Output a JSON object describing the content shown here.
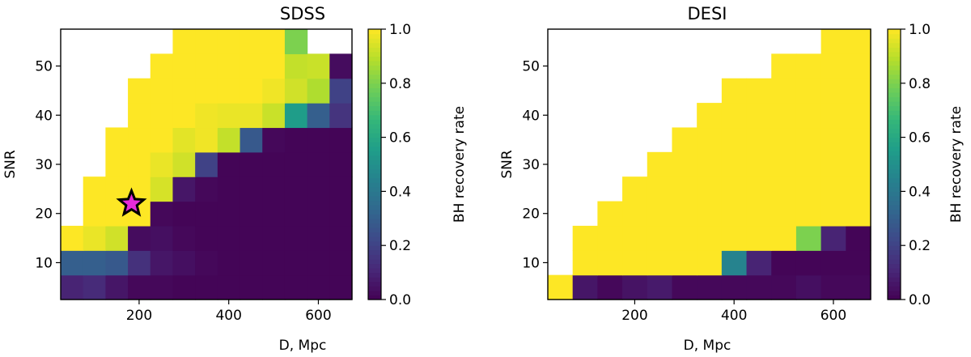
{
  "chart_data": [
    {
      "type": "heatmap",
      "title": "SDSS",
      "xlabel": "D, Mpc",
      "ylabel": "SNR",
      "xlim": [
        25,
        675
      ],
      "ylim": [
        2.5,
        57.5
      ],
      "xticks": [
        200,
        400,
        600
      ],
      "yticks": [
        10,
        20,
        30,
        40,
        50
      ],
      "x_bins": [
        50,
        100,
        150,
        200,
        250,
        300,
        350,
        400,
        450,
        500,
        550,
        600,
        650
      ],
      "y_bins": [
        5,
        10,
        15,
        20,
        25,
        30,
        35,
        40,
        45,
        50,
        55
      ],
      "values": [
        [
          0.1,
          0.12,
          0.06,
          0.02,
          0.02,
          0.01,
          0.01,
          0.01,
          0.01,
          0.01,
          0.01,
          0.01,
          0.01
        ],
        [
          0.3,
          0.3,
          0.28,
          0.14,
          0.06,
          0.04,
          0.02,
          0.01,
          0.01,
          0.01,
          0.01,
          0.01,
          0.01
        ],
        [
          1.0,
          0.97,
          0.93,
          0.03,
          0.04,
          0.02,
          0.01,
          0.01,
          0.01,
          0.01,
          0.01,
          0.01,
          0.01
        ],
        [
          null,
          1.0,
          1.0,
          1.0,
          0.02,
          0.01,
          0.01,
          0.01,
          0.01,
          0.01,
          0.01,
          0.01,
          0.01
        ],
        [
          null,
          1.0,
          1.0,
          1.0,
          0.94,
          0.06,
          0.02,
          0.01,
          0.01,
          0.01,
          0.01,
          0.01,
          0.01
        ],
        [
          null,
          null,
          1.0,
          1.0,
          0.97,
          0.93,
          0.2,
          0.01,
          0.01,
          0.01,
          0.01,
          0.01,
          0.01
        ],
        [
          null,
          null,
          1.0,
          1.0,
          1.0,
          0.96,
          0.98,
          0.91,
          0.28,
          0.02,
          0.01,
          0.01,
          0.01
        ],
        [
          null,
          null,
          null,
          1.0,
          1.0,
          1.0,
          0.98,
          0.97,
          0.97,
          0.92,
          0.55,
          0.3,
          0.15
        ],
        [
          null,
          null,
          null,
          1.0,
          1.0,
          1.0,
          1.0,
          1.0,
          1.0,
          0.98,
          0.93,
          0.88,
          0.2
        ],
        [
          null,
          null,
          null,
          null,
          1.0,
          1.0,
          1.0,
          1.0,
          1.0,
          1.0,
          0.91,
          0.92,
          0.03
        ],
        [
          null,
          null,
          null,
          null,
          null,
          1.0,
          1.0,
          1.0,
          1.0,
          1.0,
          0.8,
          null,
          null
        ]
      ],
      "marker": {
        "shape": "star",
        "x": 183,
        "y": 22,
        "fill": "#e62bd8",
        "edge": "#000000"
      },
      "colorbar": {
        "label": "BH recovery rate",
        "range": [
          0,
          1
        ],
        "ticks": [
          "0.0",
          "0.2",
          "0.4",
          "0.6",
          "0.8",
          "1.0"
        ]
      }
    },
    {
      "type": "heatmap",
      "title": "DESI",
      "xlabel": "D, Mpc",
      "ylabel": "SNR",
      "xlim": [
        25,
        675
      ],
      "ylim": [
        2.5,
        57.5
      ],
      "xticks": [
        200,
        400,
        600
      ],
      "yticks": [
        10,
        20,
        30,
        40,
        50
      ],
      "x_bins": [
        50,
        100,
        150,
        200,
        250,
        300,
        350,
        400,
        450,
        500,
        550,
        600,
        650
      ],
      "y_bins": [
        5,
        10,
        15,
        20,
        25,
        30,
        35,
        40,
        45,
        50,
        55
      ],
      "values": [
        [
          1.0,
          0.06,
          0.02,
          0.05,
          0.07,
          0.02,
          0.02,
          0.02,
          0.02,
          0.02,
          0.04,
          0.02,
          0.02
        ],
        [
          null,
          1.0,
          1.0,
          1.0,
          1.0,
          1.0,
          1.0,
          0.45,
          0.1,
          0.01,
          0.01,
          0.01,
          0.01
        ],
        [
          null,
          1.0,
          1.0,
          1.0,
          1.0,
          1.0,
          1.0,
          1.0,
          1.0,
          1.0,
          0.8,
          0.1,
          0.01
        ],
        [
          null,
          null,
          1.0,
          1.0,
          1.0,
          1.0,
          1.0,
          1.0,
          1.0,
          1.0,
          1.0,
          1.0,
          1.0
        ],
        [
          null,
          null,
          null,
          1.0,
          1.0,
          1.0,
          1.0,
          1.0,
          1.0,
          1.0,
          1.0,
          1.0,
          1.0
        ],
        [
          null,
          null,
          null,
          null,
          1.0,
          1.0,
          1.0,
          1.0,
          1.0,
          1.0,
          1.0,
          1.0,
          1.0
        ],
        [
          null,
          null,
          null,
          null,
          null,
          1.0,
          1.0,
          1.0,
          1.0,
          1.0,
          1.0,
          1.0,
          1.0
        ],
        [
          null,
          null,
          null,
          null,
          null,
          null,
          1.0,
          1.0,
          1.0,
          1.0,
          1.0,
          1.0,
          1.0
        ],
        [
          null,
          null,
          null,
          null,
          null,
          null,
          null,
          1.0,
          1.0,
          1.0,
          1.0,
          1.0,
          1.0
        ],
        [
          null,
          null,
          null,
          null,
          null,
          null,
          null,
          null,
          null,
          1.0,
          1.0,
          1.0,
          1.0
        ],
        [
          null,
          null,
          null,
          null,
          null,
          null,
          null,
          null,
          null,
          null,
          null,
          1.0,
          1.0
        ]
      ],
      "colorbar": {
        "label": "BH recovery rate",
        "range": [
          0,
          1
        ],
        "ticks": [
          "0.0",
          "0.2",
          "0.4",
          "0.6",
          "0.8",
          "1.0"
        ]
      }
    }
  ],
  "colormap": "viridis"
}
